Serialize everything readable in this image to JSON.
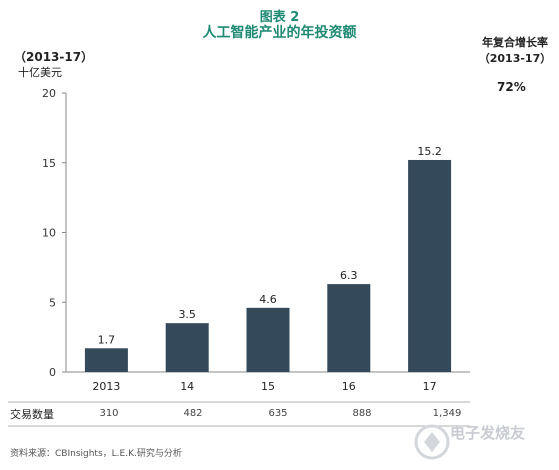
{
  "header": {
    "figure_label": "图表 2",
    "title": "人工智能产业的年投资额",
    "period": "（2013-17）",
    "unit": "十亿美元"
  },
  "cagr": {
    "title": "年复合增长率",
    "period": "（2013-17）",
    "value": "72%"
  },
  "chart_data": {
    "type": "bar",
    "categories": [
      "2013",
      "14",
      "15",
      "16",
      "17"
    ],
    "values": [
      1.7,
      3.5,
      4.6,
      6.3,
      15.2
    ],
    "value_labels": [
      "1.7",
      "3.5",
      "4.6",
      "6.3",
      "15.2"
    ],
    "ylim": [
      0,
      20
    ],
    "yticks": [
      0,
      5,
      10,
      15,
      20
    ],
    "ylabel": "十亿美元",
    "bar_color": "#34495a",
    "grid": false
  },
  "deals_row": {
    "label": "交易数量",
    "values": [
      "310",
      "482",
      "635",
      "888",
      "1,349"
    ]
  },
  "source": "资料来源：CBInsights，L.E.K.研究与分析",
  "watermark": "电子发烧友"
}
